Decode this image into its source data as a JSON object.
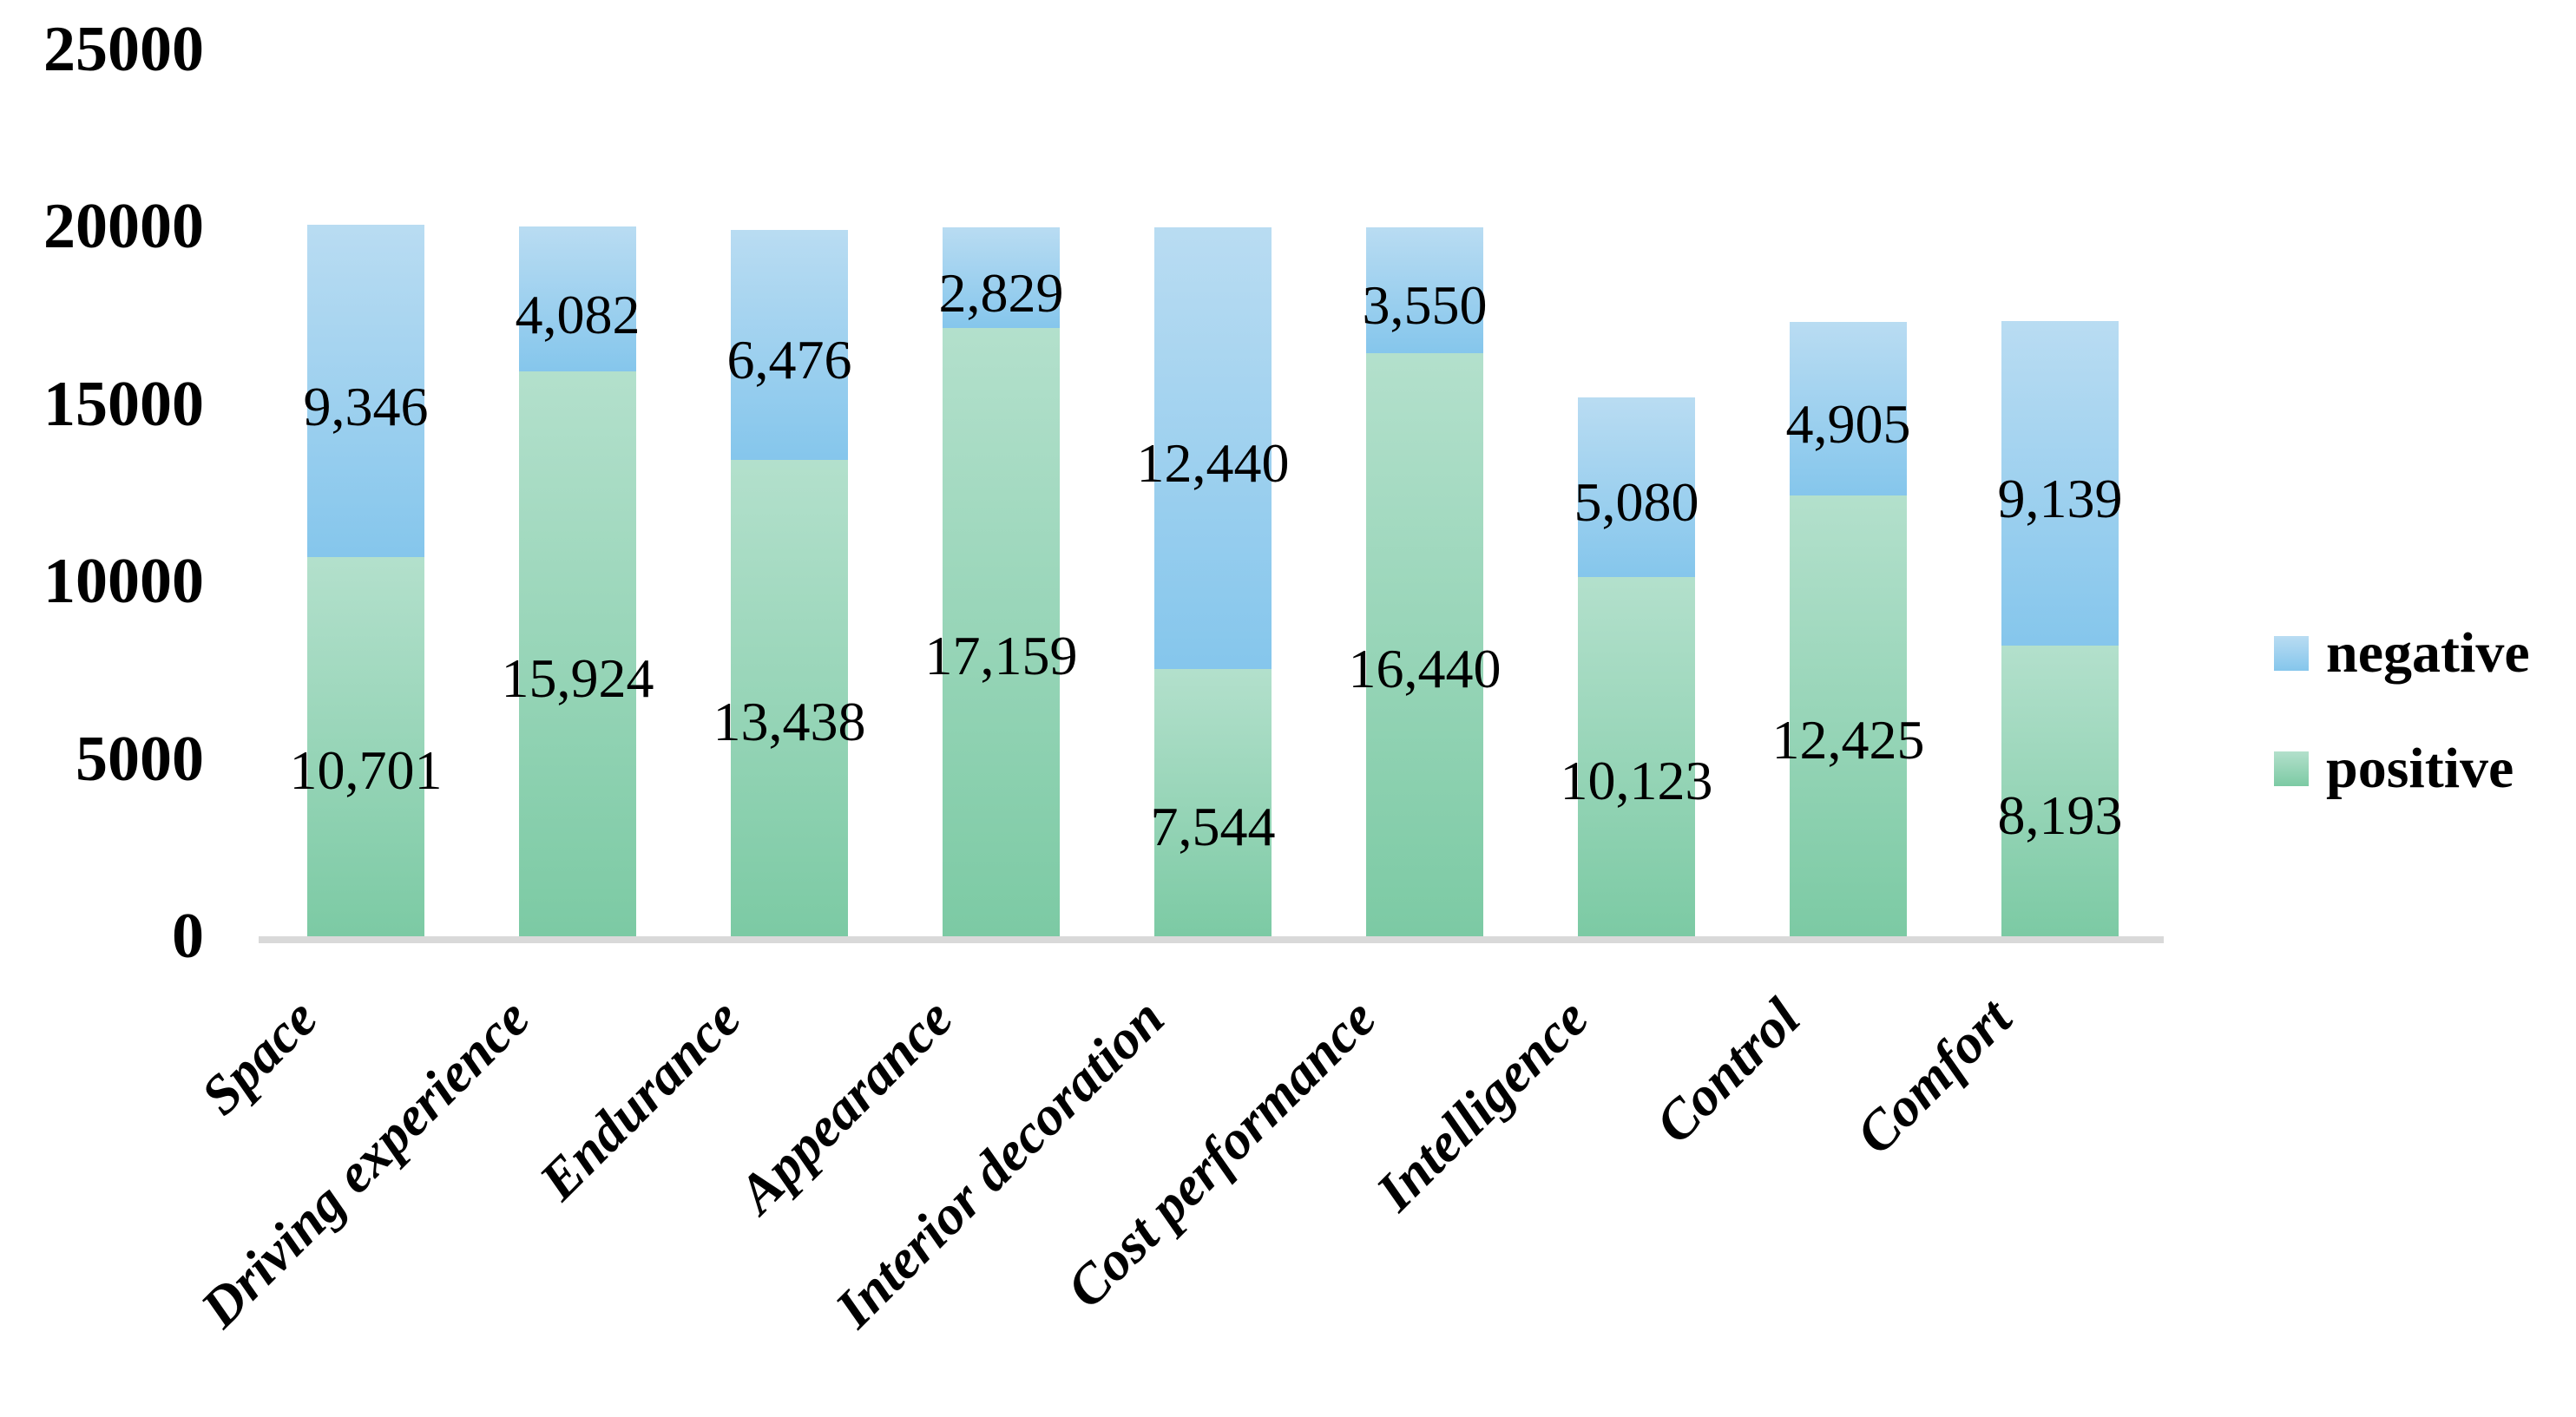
{
  "chart_data": {
    "type": "bar",
    "stacked": true,
    "title": "",
    "xlabel": "",
    "ylabel": "",
    "background": "#ffffff",
    "axis_line_color": "#d9d9d9",
    "text_color": "#000000",
    "ylim": [
      0,
      25000
    ],
    "y_ticks": [
      0,
      5000,
      10000,
      15000,
      20000,
      25000
    ],
    "y_tick_labels": [
      "0",
      "5000",
      "10000",
      "15000",
      "20000",
      "25000"
    ],
    "grid": false,
    "legend_position": "right",
    "categories": [
      "Space",
      "Driving experience",
      "Endurance",
      "Appearance",
      "Interior decoration",
      "Cost performance",
      "Intelligence",
      "Control",
      "Comfort"
    ],
    "series": [
      {
        "name": "negative",
        "color_top": "#b9dcf2",
        "color_bottom": "#85c6ec",
        "values": [
          9346,
          4082,
          6476,
          2829,
          12440,
          3550,
          5080,
          4905,
          9139
        ],
        "labels": [
          "9,346",
          "4,082",
          "6,476",
          "2,829",
          "12,440",
          "3,550",
          "5,080",
          "4,905",
          "9,139"
        ]
      },
      {
        "name": "positive",
        "color_top": "#b3e0cc",
        "color_bottom": "#7ccaa4",
        "values": [
          10701,
          15924,
          13438,
          17159,
          7544,
          16440,
          10123,
          12425,
          8193
        ],
        "labels": [
          "10,701",
          "15,924",
          "13,438",
          "17,159",
          "7,544",
          "16,440",
          "10,123",
          "12,425",
          "8,193"
        ]
      }
    ],
    "stack_order_bottom_to_top": [
      "positive",
      "negative"
    ]
  }
}
